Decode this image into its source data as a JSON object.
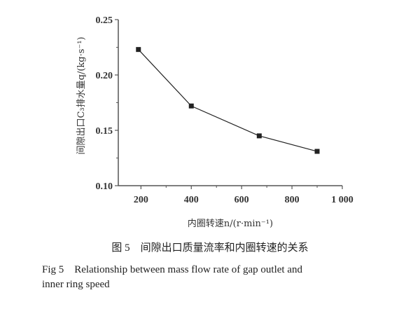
{
  "chart_data": {
    "type": "line",
    "title": "",
    "xlabel": "内圈转速n/(r·min⁻¹)",
    "ylabel": "间隙出口C₃排水量q/(kg·s⁻¹)",
    "x": [
      190,
      400,
      670,
      900
    ],
    "series": [
      {
        "name": "mass flow rate",
        "values": [
          0.223,
          0.172,
          0.145,
          0.131
        ],
        "marker": "square"
      }
    ],
    "xlim": [
      110,
      1000
    ],
    "ylim": [
      0.1,
      0.25
    ],
    "xticks": [
      200,
      400,
      600,
      800,
      1000
    ],
    "xtick_labels": [
      "200",
      "400",
      "600",
      "800",
      "1 000"
    ],
    "yticks": [
      0.1,
      0.15,
      0.2,
      0.25
    ],
    "ytick_labels": [
      "0.10",
      "0.15",
      "0.20",
      "0.25"
    ],
    "grid": false,
    "color": "#222222"
  },
  "caption": {
    "cn": "图 5　间隙出口质量流率和内圈转速的关系",
    "en_line1": "Fig 5　Relationship between mass flow rate of gap outlet and",
    "en_line2": "inner ring speed"
  }
}
